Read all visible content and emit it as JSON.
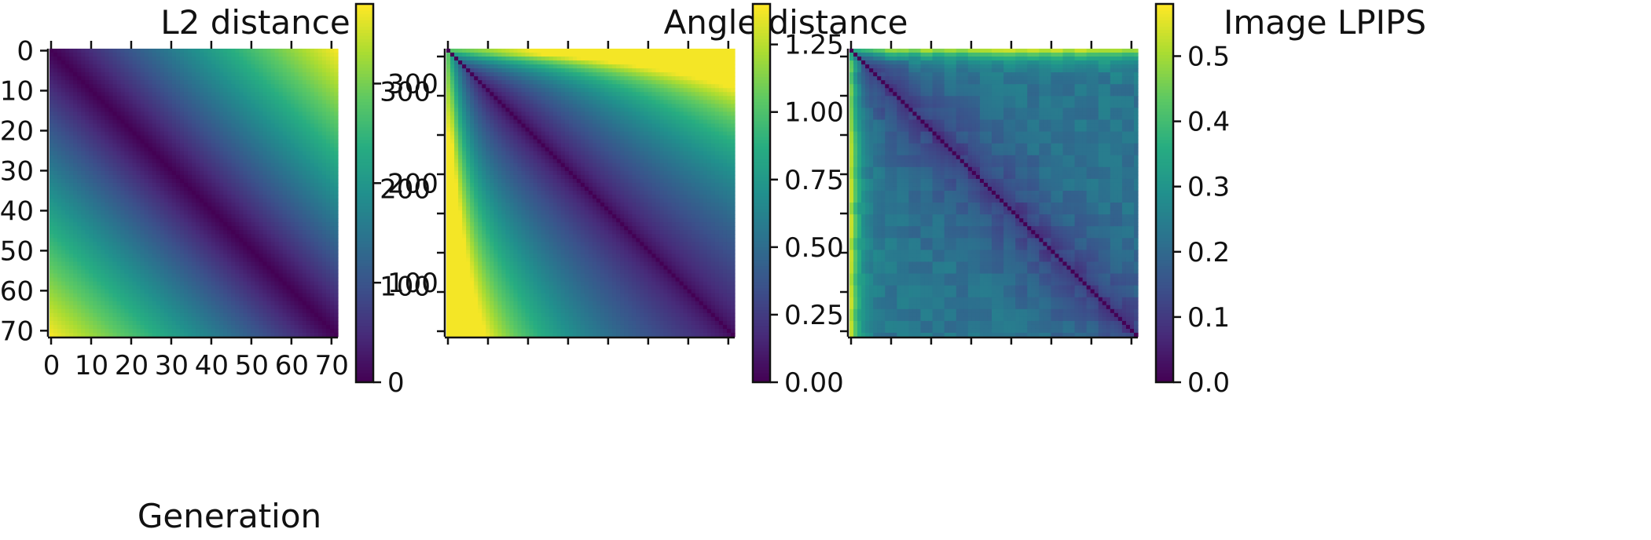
{
  "chart_data": [
    {
      "type": "heatmap",
      "title": "L2 distance",
      "xlabel": "Generation",
      "ylabel": "",
      "matrix_size": 73,
      "x_range": [
        0,
        72
      ],
      "y_range": [
        0,
        72
      ],
      "x_ticks": [
        0,
        10,
        20,
        30,
        40,
        50,
        60,
        70
      ],
      "y_ticks": [
        0,
        10,
        20,
        30,
        40,
        50,
        60,
        70
      ],
      "y_tick_labels": [
        "0",
        "10",
        "20",
        "30",
        "40",
        "50",
        "60",
        "70"
      ],
      "x_tick_labels": [
        "0",
        "10",
        "20",
        "30",
        "40",
        "50",
        "60",
        "70"
      ],
      "colorbar": {
        "min": 0,
        "max": 380,
        "ticks": [
          0,
          100,
          200,
          300
        ],
        "labels": [
          "0",
          "100",
          "200",
          "300"
        ]
      },
      "colormap": "viridis",
      "values_description": "pairwise distance between generations i and j",
      "pattern": {
        "kind": "l2",
        "scale": 5.2,
        "exponent": 1.0
      },
      "sample_values": [
        {
          "i": 0,
          "j": 0,
          "value": 0
        },
        {
          "i": 0,
          "j": 36,
          "value": 190
        },
        {
          "i": 0,
          "j": 72,
          "value": 375
        },
        {
          "i": 72,
          "j": 0,
          "value": 375
        },
        {
          "i": 36,
          "j": 72,
          "value": 190
        }
      ]
    },
    {
      "type": "heatmap",
      "title": "Angle distance",
      "xlabel": "",
      "ylabel": "",
      "matrix_size": 73,
      "y_ticks": [
        100,
        200,
        300
      ],
      "y_tick_labels": [
        "100",
        "200",
        "300"
      ],
      "y_range": [
        48,
        344
      ],
      "colorbar": {
        "min": 0,
        "max": 1.4,
        "ticks": [
          0,
          0.25,
          0.5,
          0.75,
          1.0,
          1.25
        ],
        "labels": [
          "0.00",
          "0.25",
          "0.50",
          "0.75",
          "1.00",
          "1.25"
        ]
      },
      "colormap": "viridis",
      "pattern": {
        "kind": "angle"
      },
      "sample_values": [
        {
          "i": 0,
          "j": 0,
          "value": 0
        },
        {
          "i": 0,
          "j": 72,
          "value": 1.38
        },
        {
          "i": 72,
          "j": 0,
          "value": 1.38
        },
        {
          "i": 10,
          "j": 72,
          "value": 0.95
        },
        {
          "i": 36,
          "j": 72,
          "value": 0.55
        }
      ]
    },
    {
      "type": "heatmap",
      "title": "Image LPIPS",
      "xlabel": "",
      "ylabel": "",
      "matrix_size": 73,
      "colorbar": {
        "min": 0,
        "max": 0.58,
        "ticks": [
          0,
          0.1,
          0.2,
          0.3,
          0.4,
          0.5
        ],
        "labels": [
          "0.0",
          "0.1",
          "0.2",
          "0.3",
          "0.4",
          "0.5"
        ]
      },
      "colormap": "viridis",
      "pattern": {
        "kind": "lpips"
      },
      "sample_values": [
        {
          "i": 0,
          "j": 0,
          "value": 0
        },
        {
          "i": 0,
          "j": 72,
          "value": 0.56
        },
        {
          "i": 72,
          "j": 0,
          "value": 0.56
        },
        {
          "i": 36,
          "j": 72,
          "value": 0.2
        },
        {
          "i": 72,
          "j": 36,
          "value": 0.22
        }
      ]
    }
  ]
}
